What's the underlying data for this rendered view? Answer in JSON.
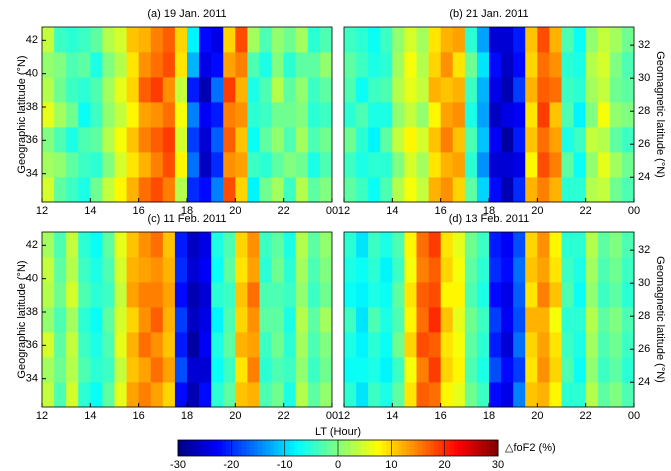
{
  "chart_data": [
    {
      "type": "heatmap",
      "title": "(a) 19 Jan. 2011",
      "colormap": "jet",
      "xlim": [
        12,
        24
      ],
      "xticks": [
        12,
        14,
        16,
        18,
        20,
        22,
        {
          "value": 24,
          "label": "00"
        }
      ],
      "ylim": [
        32.3,
        42.8
      ],
      "yticks": [
        34,
        36,
        38,
        40,
        42
      ],
      "ylabel": "Geographic latitude (°N)",
      "xbins": [
        12,
        12.5,
        13,
        13.5,
        14,
        14.5,
        15,
        15.5,
        16,
        16.5,
        17,
        17.5,
        18,
        18.5,
        19,
        19.5,
        20,
        20.5,
        21,
        21.5,
        22,
        22.5,
        23,
        23.5,
        24
      ],
      "ybins": [
        32.3,
        33.8,
        35.3,
        36.8,
        38.3,
        39.8,
        41.3,
        42.8
      ],
      "values": [
        [
          5,
          -2,
          -4,
          -6,
          -1,
          4,
          8,
          12,
          16,
          18,
          15,
          3,
          -20,
          -22,
          -15,
          18,
          10,
          -8,
          -1,
          2,
          -4,
          3,
          -2,
          0
        ],
        [
          2,
          1,
          -2,
          -4,
          -5,
          0,
          5,
          9,
          12,
          15,
          18,
          8,
          -16,
          -26,
          -20,
          14,
          13,
          -4,
          -5,
          -2,
          0,
          -1,
          -6,
          -3
        ],
        [
          0,
          -3,
          -6,
          -3,
          -2,
          3,
          7,
          11,
          15,
          17,
          19,
          5,
          -19,
          -25,
          -17,
          17,
          11,
          -7,
          -2,
          1,
          -3,
          2,
          -3,
          -1
        ],
        [
          6,
          2,
          -1,
          -7,
          -4,
          1,
          4,
          8,
          13,
          14,
          16,
          7,
          -15,
          -23,
          -21,
          15,
          14,
          -5,
          -4,
          -1,
          -1,
          0,
          -5,
          -4
        ],
        [
          3,
          -1,
          -4,
          -5,
          -3,
          2,
          6,
          10,
          17,
          19,
          14,
          4,
          -21,
          -27,
          -16,
          19,
          12,
          -6,
          -3,
          3,
          -2,
          1,
          -4,
          -2
        ],
        [
          1,
          0,
          -3,
          -2,
          -6,
          0,
          3,
          9,
          14,
          16,
          18,
          9,
          -12,
          -24,
          -22,
          13,
          15,
          -3,
          -6,
          0,
          -5,
          -2,
          -2,
          1
        ],
        [
          4,
          -4,
          -5,
          -4,
          -2,
          3,
          5,
          11,
          12,
          15,
          17,
          10,
          -8,
          -22,
          -24,
          10,
          18,
          2,
          -3,
          1,
          -1,
          2,
          -5,
          -3
        ]
      ]
    },
    {
      "type": "heatmap",
      "title": "(b) 21 Jan. 2011",
      "colormap": "jet",
      "xlim": [
        12,
        24
      ],
      "xticks": [
        12,
        14,
        16,
        18,
        20,
        22,
        {
          "value": 24,
          "label": "00"
        }
      ],
      "ylim": [
        32.3,
        42.8
      ],
      "y2lim": [
        22.5,
        33.1
      ],
      "y2ticks": [
        24,
        26,
        28,
        30,
        32
      ],
      "y2label": "Geomagnetic latitude (°N)",
      "xbins": [
        12,
        12.5,
        13,
        13.5,
        14,
        14.5,
        15,
        15.5,
        16,
        16.5,
        17,
        17.5,
        18,
        18.5,
        19,
        19.5,
        20,
        20.5,
        21,
        21.5,
        22,
        22.5,
        23,
        23.5,
        24
      ],
      "ybins": [
        32.3,
        33.8,
        35.3,
        36.8,
        38.3,
        39.8,
        41.3,
        42.8
      ],
      "values": [
        [
          -2,
          -4,
          -7,
          -3,
          3,
          7,
          4,
          12,
          14,
          10,
          -2,
          -10,
          -22,
          -27,
          -20,
          12,
          15,
          12,
          -5,
          -5,
          3,
          4,
          -1,
          -3
        ],
        [
          -4,
          -6,
          -5,
          -5,
          0,
          5,
          2,
          9,
          12,
          13,
          -5,
          -14,
          -25,
          -25,
          -24,
          8,
          18,
          15,
          -2,
          -7,
          1,
          6,
          2,
          -1
        ],
        [
          -1,
          -5,
          -8,
          -2,
          4,
          8,
          5,
          11,
          15,
          11,
          -3,
          -11,
          -23,
          -28,
          -21,
          11,
          16,
          13,
          -6,
          -4,
          4,
          3,
          -2,
          -4
        ],
        [
          -5,
          -3,
          -6,
          -6,
          1,
          4,
          1,
          8,
          13,
          14,
          -6,
          -13,
          -26,
          -24,
          -23,
          9,
          19,
          11,
          -3,
          -8,
          0,
          7,
          1,
          0
        ],
        [
          -3,
          -7,
          -4,
          -3,
          3,
          6,
          4,
          12,
          11,
          12,
          -4,
          -12,
          -24,
          -27,
          -19,
          12,
          17,
          16,
          -4,
          -5,
          2,
          4,
          -1,
          -2
        ],
        [
          -2,
          -4,
          -6,
          -5,
          2,
          7,
          3,
          10,
          14,
          9,
          -1,
          -9,
          -22,
          -26,
          -22,
          10,
          16,
          14,
          -5,
          -6,
          3,
          5,
          0,
          -3
        ],
        [
          -4,
          -5,
          -7,
          -4,
          1,
          5,
          2,
          9,
          12,
          13,
          -5,
          -13,
          -25,
          -25,
          -21,
          11,
          18,
          12,
          -3,
          -7,
          1,
          4,
          2,
          -1
        ]
      ]
    },
    {
      "type": "heatmap",
      "title": "(c) 11 Feb. 2011",
      "colormap": "jet",
      "xlim": [
        12,
        24
      ],
      "xticks": [
        12,
        14,
        16,
        18,
        20,
        22,
        {
          "value": 24,
          "label": "00"
        }
      ],
      "ylim": [
        32.3,
        42.8
      ],
      "yticks": [
        34,
        36,
        38,
        40,
        42
      ],
      "ylabel": "Geographic latitude (°N)",
      "xbins": [
        12,
        12.5,
        13,
        13.5,
        14,
        14.5,
        15,
        15.5,
        16,
        16.5,
        17,
        17.5,
        18,
        18.5,
        19,
        19.5,
        20,
        20.5,
        21,
        21.5,
        22,
        22.5,
        23,
        23.5,
        24
      ],
      "ybins": [
        32.3,
        33.8,
        35.3,
        36.8,
        38.3,
        39.8,
        41.3,
        42.8
      ],
      "values": [
        [
          4,
          -3,
          5,
          -5,
          -7,
          -2,
          6,
          13,
          15,
          13,
          10,
          -22,
          -27,
          -22,
          -5,
          -2,
          11,
          12,
          -3,
          -1,
          -6,
          3,
          -2,
          1
        ],
        [
          2,
          -1,
          3,
          -3,
          -5,
          -4,
          4,
          11,
          13,
          16,
          13,
          -18,
          -25,
          -25,
          -7,
          -4,
          9,
          15,
          -5,
          -3,
          -4,
          1,
          -4,
          -1
        ],
        [
          5,
          -2,
          4,
          -4,
          -6,
          -3,
          6,
          12,
          16,
          14,
          11,
          -21,
          -28,
          -23,
          -6,
          -2,
          12,
          13,
          -4,
          -1,
          -5,
          2,
          -3,
          0
        ],
        [
          1,
          -3,
          2,
          -5,
          -7,
          -2,
          5,
          10,
          14,
          17,
          12,
          -19,
          -26,
          -24,
          -8,
          -3,
          10,
          14,
          -2,
          -2,
          -6,
          3,
          -2,
          2
        ],
        [
          3,
          -1,
          5,
          -3,
          -5,
          -4,
          4,
          13,
          15,
          15,
          13,
          -22,
          -27,
          -25,
          -5,
          -4,
          11,
          16,
          -3,
          -3,
          -4,
          1,
          -4,
          -1
        ],
        [
          4,
          -2,
          3,
          -4,
          -6,
          -3,
          5,
          12,
          13,
          14,
          12,
          -20,
          -25,
          -23,
          -7,
          -2,
          9,
          13,
          -5,
          -1,
          -5,
          2,
          -3,
          0
        ],
        [
          2,
          -3,
          4,
          -5,
          -7,
          -2,
          6,
          11,
          14,
          16,
          11,
          -21,
          -26,
          -24,
          -6,
          -3,
          10,
          14,
          -4,
          -2,
          -6,
          3,
          -2,
          1
        ]
      ]
    },
    {
      "type": "heatmap",
      "title": "(d) 13 Feb. 2011",
      "colormap": "jet",
      "xlim": [
        12,
        24
      ],
      "xticks": [
        12,
        14,
        16,
        18,
        20,
        22,
        {
          "value": 24,
          "label": "00"
        }
      ],
      "ylim": [
        32.3,
        42.8
      ],
      "y2lim": [
        22.5,
        33.1
      ],
      "y2ticks": [
        24,
        26,
        28,
        30,
        32
      ],
      "y2label": "Geomagnetic latitude (°N)",
      "xbins": [
        12,
        12.5,
        13,
        13.5,
        14,
        14.5,
        15,
        15.5,
        16,
        16.5,
        17,
        17.5,
        18,
        18.5,
        19,
        19.5,
        20,
        20.5,
        21,
        21.5,
        22,
        22.5,
        23,
        23.5,
        24
      ],
      "ybins": [
        32.3,
        33.8,
        35.3,
        36.8,
        38.3,
        39.8,
        41.3,
        42.8
      ],
      "values": [
        [
          -5,
          -9,
          -4,
          -6,
          -2,
          9,
          17,
          16,
          8,
          6,
          -1,
          -4,
          -22,
          -24,
          -15,
          11,
          12,
          8,
          -5,
          -5,
          3,
          -2,
          0,
          -3
        ],
        [
          -7,
          -7,
          -6,
          -8,
          -4,
          7,
          15,
          19,
          10,
          8,
          -3,
          -6,
          -18,
          -22,
          -19,
          9,
          14,
          10,
          -3,
          -7,
          1,
          -4,
          -2,
          -5
        ],
        [
          -6,
          -8,
          -5,
          -7,
          -1,
          10,
          18,
          17,
          9,
          7,
          -2,
          -5,
          -21,
          -25,
          -16,
          10,
          13,
          9,
          -4,
          -6,
          2,
          -3,
          -1,
          -4
        ],
        [
          -4,
          -9,
          -3,
          -6,
          -3,
          8,
          16,
          20,
          11,
          6,
          -1,
          -4,
          -19,
          -23,
          -18,
          12,
          12,
          7,
          -5,
          -5,
          3,
          -2,
          0,
          -3
        ],
        [
          -7,
          -8,
          -6,
          -7,
          -2,
          9,
          17,
          18,
          8,
          8,
          -3,
          -6,
          -22,
          -24,
          -17,
          9,
          15,
          11,
          -3,
          -7,
          1,
          -4,
          -2,
          -5
        ],
        [
          -6,
          -7,
          -5,
          -8,
          -4,
          7,
          15,
          17,
          10,
          7,
          -2,
          -5,
          -20,
          -22,
          -16,
          11,
          13,
          9,
          -4,
          -6,
          2,
          -3,
          -1,
          -4
        ],
        [
          -5,
          -9,
          -4,
          -6,
          -3,
          8,
          16,
          19,
          9,
          6,
          -1,
          -4,
          -21,
          -23,
          -18,
          10,
          14,
          8,
          -5,
          -5,
          3,
          -2,
          0,
          -3
        ]
      ]
    }
  ],
  "xlabel": "LT (Hour)",
  "colorbar": {
    "clim": [
      -30,
      30
    ],
    "ticks": [
      -30,
      -20,
      -10,
      0,
      10,
      20,
      30
    ],
    "label": "△foF2 (%)",
    "colormap": "jet"
  }
}
